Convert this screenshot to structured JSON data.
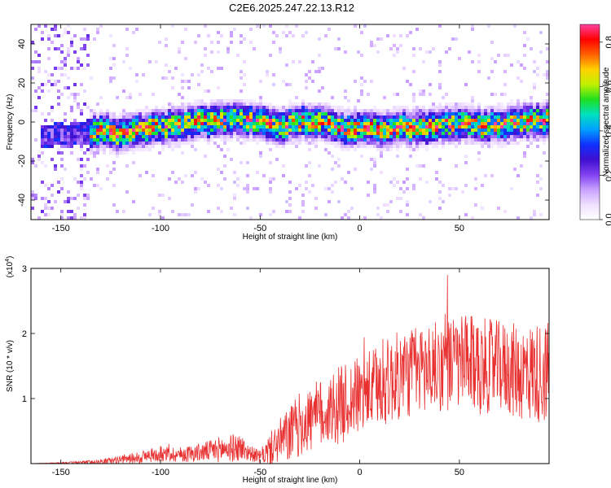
{
  "figure_title": "C2E6.2025.247.22.13.R12",
  "colors": {
    "snr_line": "#e83030",
    "colormap": [
      "#ffffff",
      "#f0e0ff",
      "#c8a0ff",
      "#8040f0",
      "#4010d0",
      "#1030ff",
      "#00a0ff",
      "#00e0c0",
      "#20e020",
      "#c0f000",
      "#ffd000",
      "#ff6000",
      "#ff0000",
      "#ff40a0"
    ]
  },
  "chart_data": [
    {
      "type": "heatmap",
      "title": "",
      "xlabel": "Height of straight line (km)",
      "ylabel": "Frequency (Hz)",
      "xlim": [
        -165,
        95
      ],
      "ylim": [
        -50,
        50
      ],
      "x_ticks": [
        -150,
        -100,
        -50,
        0,
        50
      ],
      "x_tick_labels": [
        "-150",
        "-100",
        "-50",
        "0",
        "50"
      ],
      "y_ticks": [
        -40,
        -20,
        0,
        20,
        40
      ],
      "y_tick_labels": [
        "-40",
        "-20",
        "0",
        "20",
        "40"
      ],
      "grid": false,
      "colorbar": {
        "label": "Normalized spectral amplitude",
        "range": [
          0,
          0.88
        ],
        "ticks": [
          0,
          0.2,
          0.4,
          0.6,
          0.8
        ],
        "tick_labels": [
          "0.0",
          "0.2",
          "0.4",
          "0.6",
          "0.8"
        ]
      },
      "ridge": {
        "x": [
          -150,
          -140,
          -130,
          -120,
          -110,
          -100,
          -90,
          -80,
          -70,
          -60,
          -50,
          -40,
          -30,
          -20,
          -10,
          0,
          10,
          20,
          30,
          40,
          50,
          60,
          70,
          80,
          90
        ],
        "frequency": [
          -7,
          -6,
          -4,
          -7,
          -4,
          -3,
          -1,
          0,
          1,
          1,
          0,
          -2,
          0,
          0,
          -3,
          -4,
          -4,
          -3,
          -3,
          -2,
          0,
          -2,
          -2,
          0,
          1
        ]
      }
    },
    {
      "type": "line",
      "title": "",
      "xlabel": "Height of straight line (km)",
      "ylabel": "SNR (10 * v/v)",
      "y_multiplier": "(x10",
      "y_multiplier_exp": "4",
      "xlim": [
        -165,
        95
      ],
      "ylim": [
        0,
        3
      ],
      "x_ticks": [
        -150,
        -100,
        -50,
        0,
        50
      ],
      "x_tick_labels": [
        "-150",
        "-100",
        "-50",
        "0",
        "50"
      ],
      "y_ticks": [
        1,
        2,
        3
      ],
      "y_tick_labels": [
        "1",
        "2",
        "3"
      ],
      "grid": false,
      "series": [
        {
          "x": [
            -165,
            -150,
            -140,
            -130,
            -120,
            -110,
            -100,
            -90,
            -80,
            -70,
            -60,
            -55,
            -50,
            -45,
            -40,
            -35,
            -30,
            -20,
            -10,
            0,
            10,
            20,
            30,
            40,
            50,
            60,
            70,
            80,
            95
          ],
          "mean": [
            0.0,
            0.01,
            0.02,
            0.03,
            0.06,
            0.1,
            0.15,
            0.14,
            0.17,
            0.22,
            0.25,
            0.16,
            0.1,
            0.22,
            0.35,
            0.45,
            0.6,
            0.75,
            0.9,
            1.05,
            1.2,
            1.35,
            1.45,
            1.5,
            1.55,
            1.5,
            1.5,
            1.4,
            1.4
          ],
          "spread": [
            0.0,
            0.01,
            0.02,
            0.04,
            0.06,
            0.1,
            0.12,
            0.12,
            0.14,
            0.2,
            0.22,
            0.12,
            0.1,
            0.25,
            0.35,
            0.45,
            0.5,
            0.55,
            0.6,
            0.6,
            0.65,
            0.7,
            0.7,
            0.7,
            0.75,
            0.75,
            0.7,
            0.75,
            0.8
          ]
        }
      ]
    }
  ]
}
